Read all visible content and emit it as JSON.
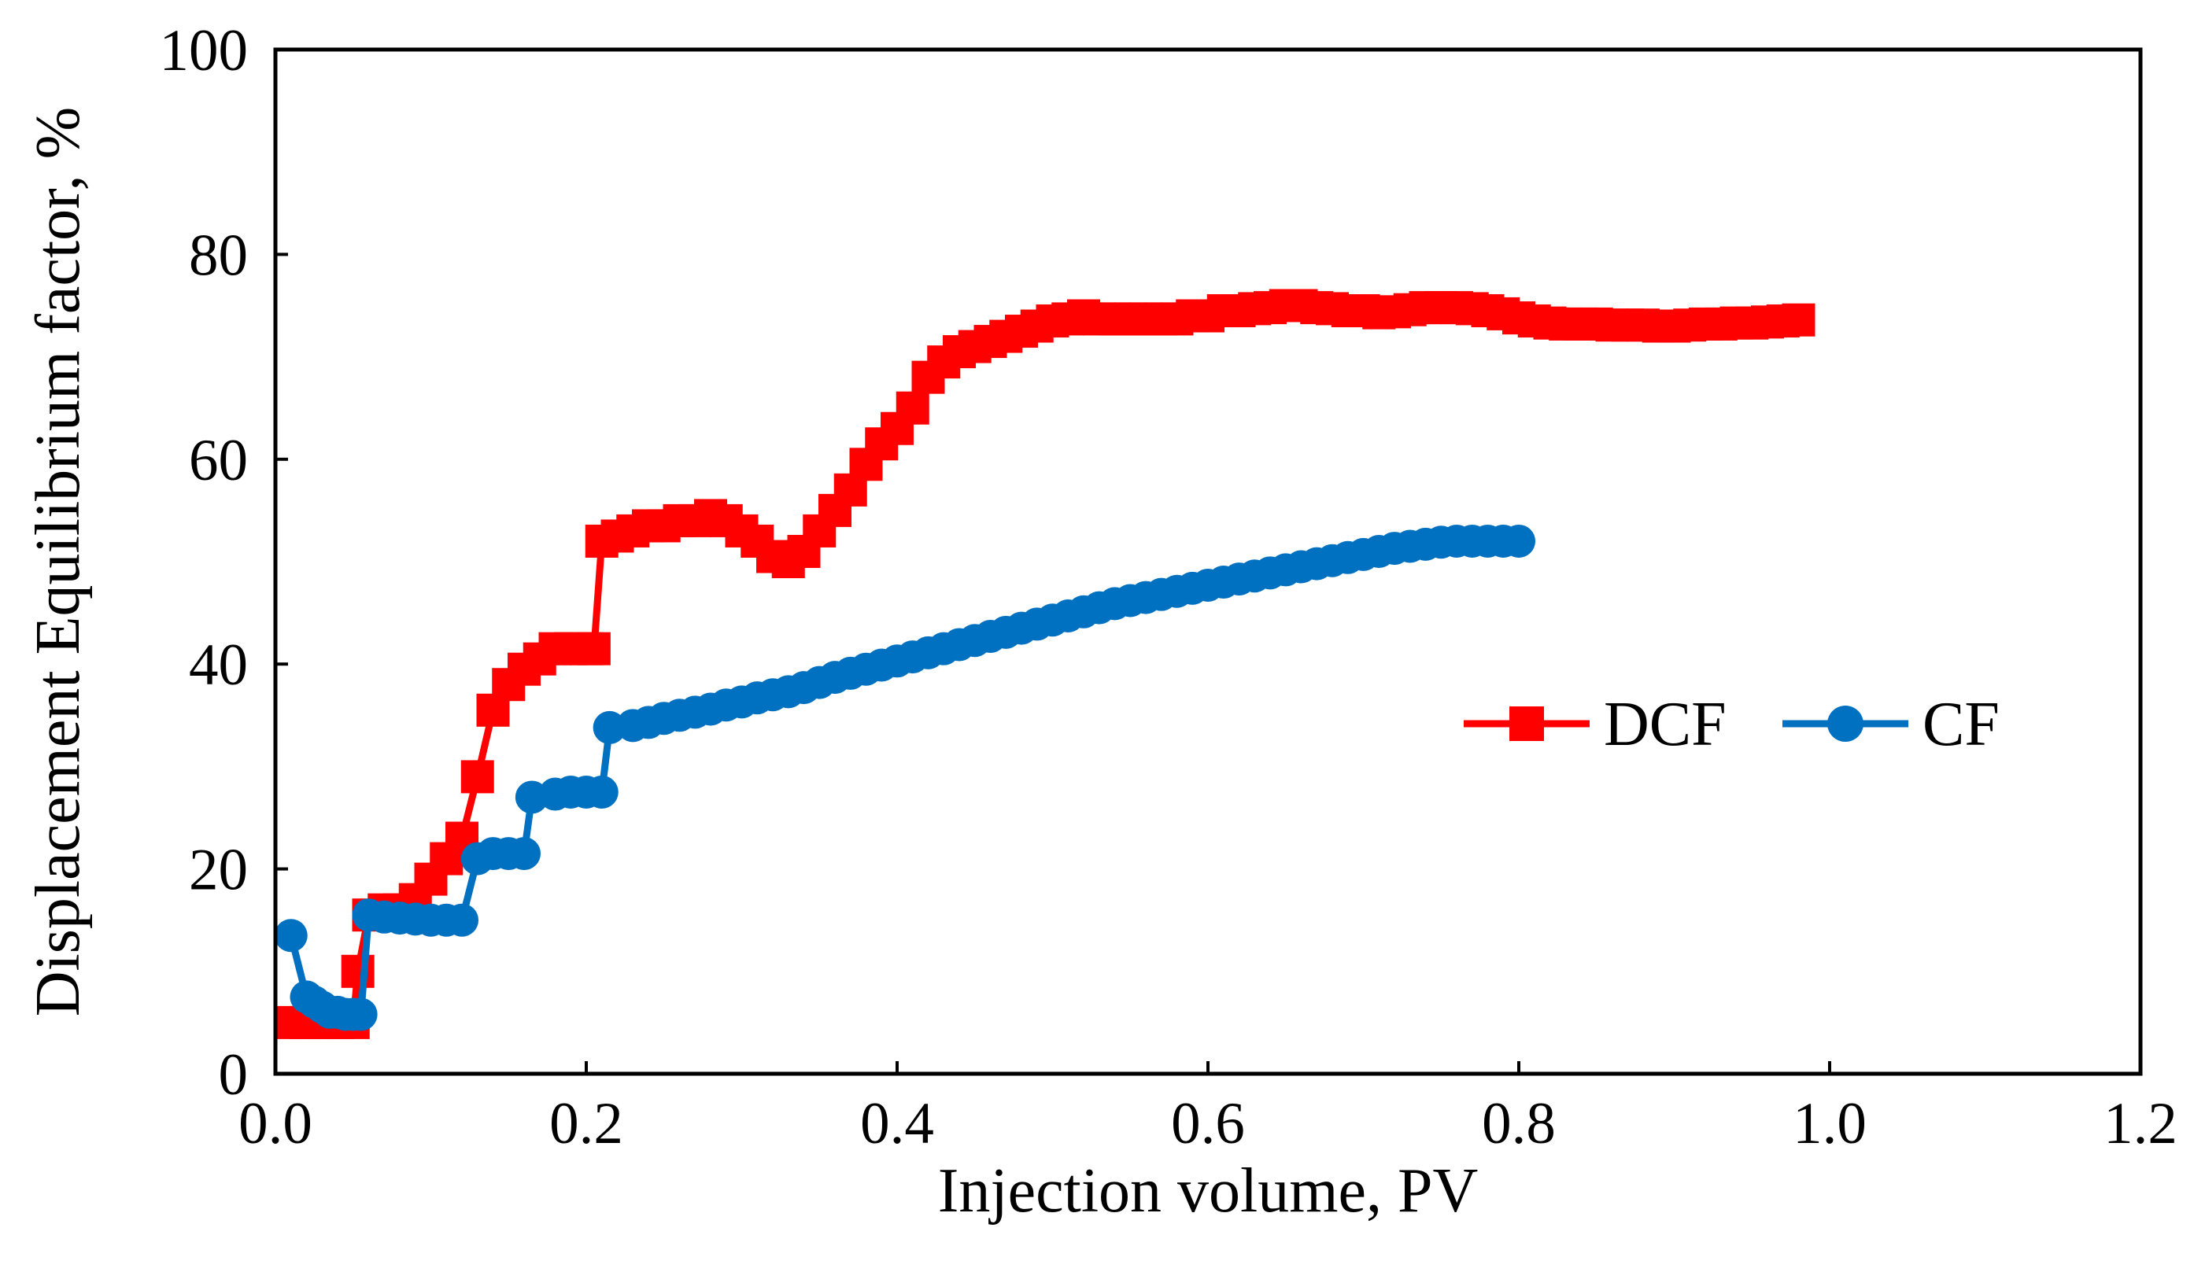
{
  "chart_data": {
    "type": "line",
    "title": "",
    "xlabel": "Injection volume, PV",
    "ylabel": "Displacement Equilibrium factor, %",
    "xlim": [
      0,
      1.2
    ],
    "ylim": [
      0,
      100
    ],
    "xticks": [
      "0.0",
      "0.2",
      "0.4",
      "0.6",
      "0.8",
      "1.0",
      "1.2"
    ],
    "xtick_values": [
      0,
      0.2,
      0.4,
      0.6,
      0.8,
      1.0,
      1.2
    ],
    "yticks": [
      "0",
      "20",
      "40",
      "60",
      "80",
      "100"
    ],
    "ytick_values": [
      0,
      20,
      40,
      60,
      80,
      100
    ],
    "grid": false,
    "legend_position": "right-middle",
    "series": [
      {
        "name": "DCF",
        "color": "#ff0000",
        "marker": "square",
        "x": [
          0.01,
          0.02,
          0.03,
          0.04,
          0.05,
          0.053,
          0.06,
          0.07,
          0.08,
          0.09,
          0.1,
          0.11,
          0.12,
          0.13,
          0.14,
          0.15,
          0.16,
          0.17,
          0.18,
          0.19,
          0.2,
          0.205,
          0.21,
          0.22,
          0.23,
          0.24,
          0.25,
          0.26,
          0.27,
          0.28,
          0.29,
          0.3,
          0.31,
          0.32,
          0.33,
          0.34,
          0.35,
          0.36,
          0.37,
          0.38,
          0.39,
          0.4,
          0.41,
          0.42,
          0.43,
          0.44,
          0.45,
          0.46,
          0.47,
          0.48,
          0.49,
          0.5,
          0.51,
          0.52,
          0.53,
          0.54,
          0.55,
          0.56,
          0.57,
          0.58,
          0.59,
          0.6,
          0.61,
          0.62,
          0.63,
          0.64,
          0.65,
          0.66,
          0.67,
          0.68,
          0.69,
          0.7,
          0.71,
          0.72,
          0.73,
          0.74,
          0.75,
          0.76,
          0.77,
          0.78,
          0.79,
          0.8,
          0.81,
          0.82,
          0.83,
          0.84,
          0.85,
          0.86,
          0.87,
          0.88,
          0.89,
          0.9,
          0.91,
          0.92,
          0.93,
          0.94,
          0.95,
          0.96,
          0.97,
          0.98
        ],
        "values": [
          5,
          5,
          5,
          5,
          5,
          10,
          15.5,
          16,
          16,
          17,
          19,
          21,
          23,
          29,
          35.5,
          38,
          39.5,
          40.5,
          41.5,
          41.5,
          41.5,
          41.5,
          52,
          52.5,
          53,
          53.5,
          53.5,
          54,
          54,
          54.5,
          54,
          53,
          52,
          50.5,
          50,
          51,
          53,
          55,
          57,
          59.5,
          61.5,
          63,
          65,
          68,
          69.5,
          70.5,
          71,
          71.5,
          72,
          72.5,
          73,
          73.5,
          73.7,
          74,
          73.7,
          73.7,
          73.7,
          73.7,
          73.7,
          73.7,
          74,
          74,
          74.5,
          74.5,
          74.7,
          74.8,
          75,
          75,
          74.8,
          74.7,
          74.5,
          74.5,
          74.3,
          74.4,
          74.6,
          74.8,
          74.8,
          74.8,
          74.7,
          74.5,
          74.2,
          73.8,
          73.5,
          73.3,
          73.2,
          73.2,
          73.2,
          73.1,
          73.1,
          73.1,
          73,
          73,
          73.1,
          73.2,
          73.2,
          73.3,
          73.3,
          73.4,
          73.5,
          73.6
        ]
      },
      {
        "name": "CF",
        "color": "#0070c0",
        "marker": "circle",
        "x": [
          0.01,
          0.02,
          0.025,
          0.03,
          0.035,
          0.04,
          0.045,
          0.05,
          0.055,
          0.06,
          0.07,
          0.08,
          0.09,
          0.1,
          0.11,
          0.12,
          0.13,
          0.14,
          0.15,
          0.16,
          0.165,
          0.18,
          0.19,
          0.2,
          0.21,
          0.215,
          0.23,
          0.24,
          0.25,
          0.26,
          0.27,
          0.28,
          0.29,
          0.3,
          0.31,
          0.32,
          0.33,
          0.34,
          0.35,
          0.36,
          0.37,
          0.38,
          0.39,
          0.4,
          0.41,
          0.42,
          0.43,
          0.44,
          0.45,
          0.46,
          0.47,
          0.48,
          0.49,
          0.5,
          0.51,
          0.52,
          0.53,
          0.54,
          0.55,
          0.56,
          0.57,
          0.58,
          0.59,
          0.6,
          0.61,
          0.62,
          0.63,
          0.64,
          0.65,
          0.66,
          0.67,
          0.68,
          0.69,
          0.7,
          0.71,
          0.72,
          0.73,
          0.74,
          0.75,
          0.76,
          0.77,
          0.78,
          0.79,
          0.8
        ],
        "values": [
          13.5,
          7.5,
          7,
          6.5,
          6,
          6,
          5.8,
          5.8,
          5.8,
          15.5,
          15.3,
          15.2,
          15.1,
          15,
          15,
          15,
          21,
          21.5,
          21.5,
          21.5,
          27,
          27.3,
          27.5,
          27.5,
          27.5,
          33.8,
          34,
          34.3,
          34.7,
          35,
          35.3,
          35.6,
          36,
          36.3,
          36.7,
          37,
          37.3,
          37.7,
          38.2,
          38.7,
          39.1,
          39.5,
          39.9,
          40.3,
          40.7,
          41.1,
          41.5,
          41.9,
          42.3,
          42.7,
          43.1,
          43.5,
          43.9,
          44.3,
          44.7,
          45.1,
          45.5,
          45.9,
          46.2,
          46.5,
          46.8,
          47.1,
          47.4,
          47.7,
          48,
          48.3,
          48.6,
          48.9,
          49.2,
          49.5,
          49.8,
          50.1,
          50.4,
          50.7,
          51,
          51.3,
          51.5,
          51.7,
          51.9,
          52,
          52,
          52,
          52,
          52
        ]
      }
    ]
  }
}
